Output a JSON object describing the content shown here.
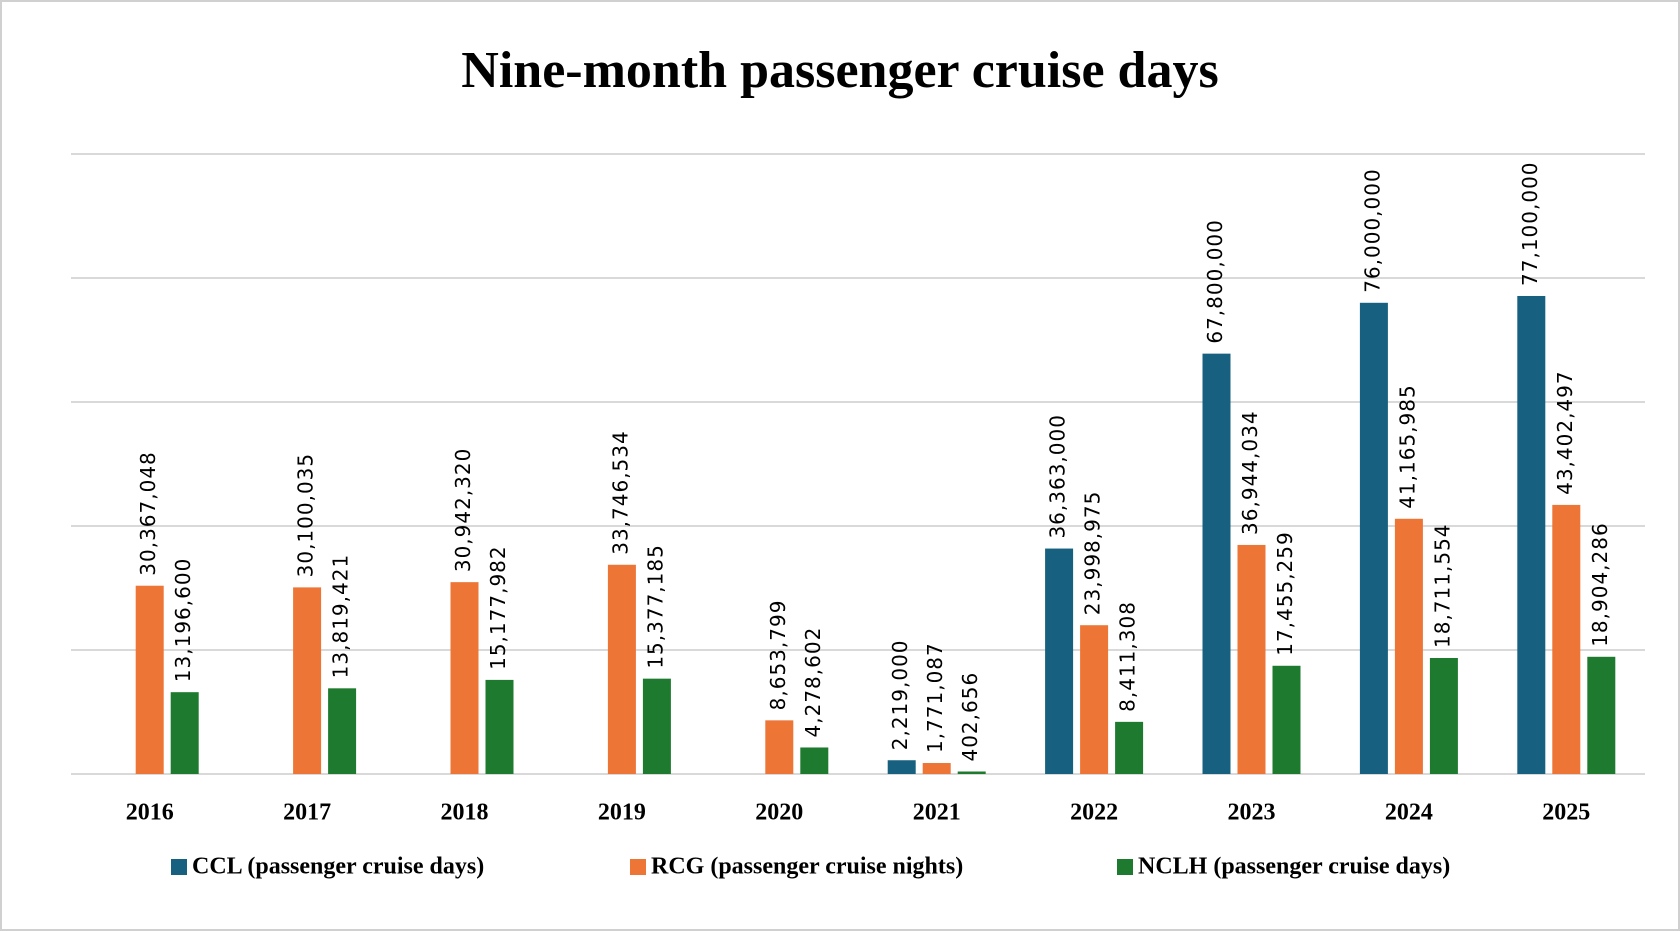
{
  "chart_data": {
    "type": "bar",
    "title": "Nine-month passenger cruise days",
    "categories": [
      "2016",
      "2017",
      "2018",
      "2019",
      "2020",
      "2021",
      "2022",
      "2023",
      "2024",
      "2025"
    ],
    "series": [
      {
        "name": "CCL (passenger cruise days)",
        "color": "#17607f",
        "values": [
          null,
          null,
          null,
          null,
          null,
          2219000,
          36363000,
          67800000,
          76000000,
          77100000
        ],
        "value_labels": [
          null,
          null,
          null,
          null,
          null,
          "2,219,000",
          "36,363,000",
          "67,800,000",
          "76,000,000",
          "77,100,000"
        ]
      },
      {
        "name": "RCG (passenger cruise nights)",
        "color": "#ed7535",
        "values": [
          30367048,
          30100035,
          30942320,
          33746534,
          8653799,
          1771087,
          23998975,
          36944034,
          41165985,
          43402497
        ],
        "value_labels": [
          "30,367,048",
          "30,100,035",
          "30,942,320",
          "33,746,534",
          "8,653,799",
          "1,771,087",
          "23,998,975",
          "36,944,034",
          "41,165,985",
          "43,402,497"
        ]
      },
      {
        "name": "NCLH (passenger cruise days)",
        "color": "#1e7a2e",
        "values": [
          13196600,
          13819421,
          15177982,
          15377185,
          4278602,
          402656,
          8411308,
          17455259,
          18711554,
          18904286
        ],
        "value_labels": [
          "13,196,600",
          "13,819,421",
          "15,177,982",
          "15,377,185",
          "4,278,602",
          "402,656",
          "8,411,308",
          "17,455,259",
          "18,711,554",
          "18,904,286"
        ]
      }
    ],
    "ylim": [
      0,
      100000000
    ],
    "yticks": [
      0,
      20000000,
      40000000,
      60000000,
      80000000,
      100000000
    ],
    "grid": true,
    "legend": "bottom"
  }
}
